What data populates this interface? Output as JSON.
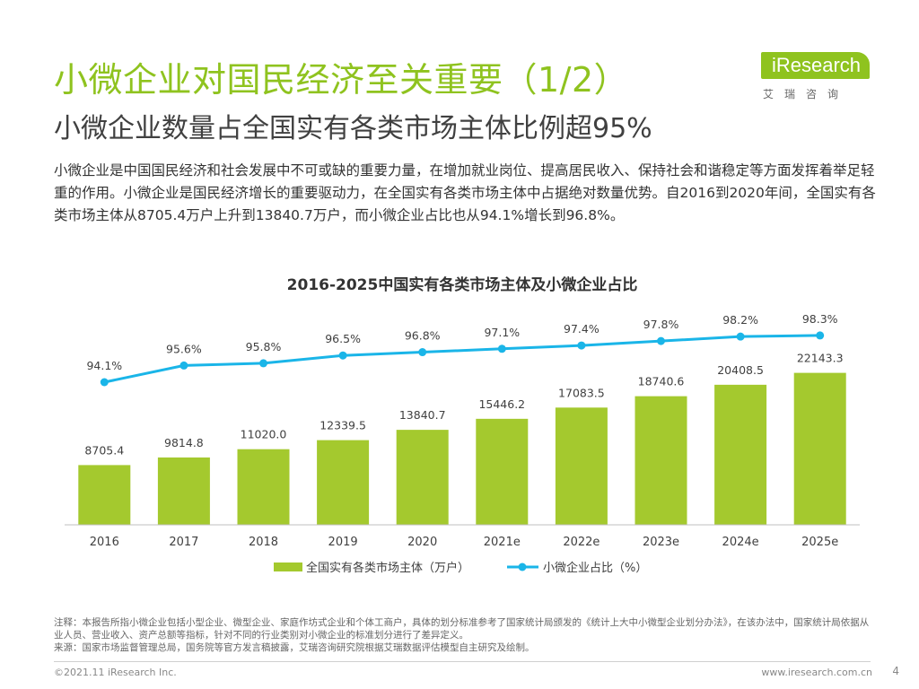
{
  "header": {
    "title": "小微企业对国民经济至关重要（1/2）",
    "subtitle": "小微企业数量占全国实有各类市场主体比例超95%"
  },
  "logo": {
    "brand": "iResearch",
    "brand_cn": "艾瑞咨询",
    "color": "#8fc31f"
  },
  "body": {
    "paragraph": "小微企业是中国国民经济和社会发展中不可或缺的重要力量，在增加就业岗位、提高居民收入、保持社会和谐稳定等方面发挥着举足轻重的作用。小微企业是国民经济增长的重要驱动力，在全国实有各类市场主体中占据绝对数量优势。自2016到2020年间，全国实有各类市场主体从8705.4万户上升到13840.7万户，而小微企业占比也从94.1%增长到96.8%。"
  },
  "chart_data": {
    "type": "bar",
    "title": "2016-2025中国实有各类市场主体及小微企业占比",
    "categories": [
      "2016",
      "2017",
      "2018",
      "2019",
      "2020",
      "2021e",
      "2022e",
      "2023e",
      "2024e",
      "2025e"
    ],
    "series": [
      {
        "name": "全国实有各类市场主体（万户）",
        "type": "bar",
        "color": "#a4c92e",
        "values": [
          8705.4,
          9814.8,
          11020.0,
          12339.5,
          13840.7,
          15446.2,
          17083.5,
          18740.6,
          20408.5,
          22143.3
        ],
        "labels": [
          "8705.4",
          "9814.8",
          "11020.0",
          "12339.5",
          "13840.7",
          "15446.2",
          "17083.5",
          "18740.6",
          "20408.5",
          "22143.3"
        ]
      },
      {
        "name": "小微企业占比（%）",
        "type": "line",
        "color": "#1ab5e8",
        "values": [
          94.1,
          95.6,
          95.8,
          96.5,
          96.8,
          97.1,
          97.4,
          97.8,
          98.2,
          98.3
        ],
        "labels": [
          "94.1%",
          "95.6%",
          "95.8%",
          "96.5%",
          "96.8%",
          "97.1%",
          "97.4%",
          "97.8%",
          "98.2%",
          "98.3%"
        ]
      }
    ],
    "legend_position": "bottom"
  },
  "notes": {
    "note": "注释：本报告所指小微企业包括小型企业、微型企业、家庭作坊式企业和个体工商户，具体的划分标准参考了国家统计局颁发的《统计上大中小微型企业划分办法》，在该办法中，国家统计局依据从业人员、营业收入、资产总额等指标，针对不同的行业类别对小微企业的标准划分进行了差异定义。",
    "source": "来源：国家市场监督管理总局，国务院等官方发言稿披露，艾瑞咨询研究院根据艾瑞数据评估模型自主研究及绘制。"
  },
  "footer": {
    "copyright": "©2021.11 iResearch Inc.",
    "site": "www.iresearch.com.cn",
    "page": "4"
  }
}
